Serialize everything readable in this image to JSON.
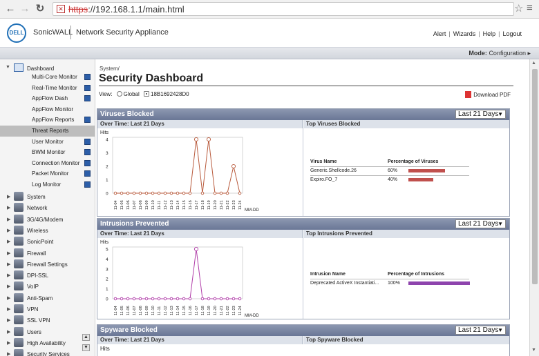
{
  "browser": {
    "back_icon": "arrow-left",
    "forward_icon": "arrow-right",
    "reload_icon": "reload",
    "url_scheme": "https",
    "url_rest": "://192.168.1.1/main.html"
  },
  "header": {
    "logo_text": "DELL",
    "brand": "SonicWALL",
    "product": "Network Security Appliance",
    "links": [
      "Alert",
      "Wizards",
      "Help",
      "Logout"
    ]
  },
  "mode_bar": {
    "label": "Mode:",
    "value": "Configuration ▸"
  },
  "sidebar": {
    "dashboard_label": "Dashboard",
    "sub_items": [
      {
        "label": "Multi-Core Monitor",
        "ext": true
      },
      {
        "label": "Real-Time Monitor",
        "ext": true
      },
      {
        "label": "AppFlow Dash",
        "ext": true
      },
      {
        "label": "AppFlow Monitor",
        "ext": false
      },
      {
        "label": "AppFlow Reports",
        "ext": true
      },
      {
        "label": "Threat Reports",
        "ext": false,
        "active": true
      },
      {
        "label": "User Monitor",
        "ext": true
      },
      {
        "label": "BWM Monitor",
        "ext": true
      },
      {
        "label": "Connection Monitor",
        "ext": true
      },
      {
        "label": "Packet Monitor",
        "ext": true
      },
      {
        "label": "Log Monitor",
        "ext": true
      }
    ],
    "top_items": [
      "System",
      "Network",
      "3G/4G/Modem",
      "Wireless",
      "SonicPoint",
      "Firewall",
      "Firewall Settings",
      "DPI-SSL",
      "VoIP",
      "Anti-Spam",
      "VPN",
      "SSL VPN",
      "Users",
      "High Availability",
      "Security Services"
    ]
  },
  "content": {
    "breadcrumb": "System/",
    "title": "Security Dashboard",
    "view_label": "View:",
    "view_global": "Global",
    "view_serial": "18B1692428D0",
    "download": "Download PDF"
  },
  "panels": [
    {
      "title": "Viruses Blocked",
      "period": "Last 21 Days",
      "left_head": "Over Time: Last 21 Days",
      "right_head": "Top Viruses Blocked",
      "col1": "Virus Name",
      "col2": "Percentage of Viruses",
      "rows": [
        {
          "name": "Generic.Shellcode.26",
          "pct": "60%",
          "value": 60
        },
        {
          "name": "Expiro.FO_7",
          "pct": "40%",
          "value": 40
        }
      ],
      "bar_color": "#c0504d"
    },
    {
      "title": "Intrusions Prevented",
      "period": "Last 21 Days",
      "left_head": "Over Time: Last 21 Days",
      "right_head": "Top Intrusions Prevented",
      "col1": "Intrusion Name",
      "col2": "Percentage of Intrusions",
      "rows": [
        {
          "name": "Deprecated ActiveX Instantiati...",
          "pct": "100%",
          "value": 100
        }
      ],
      "bar_color": "#8e44ad"
    },
    {
      "title": "Spyware Blocked",
      "period": "Last 21 Days",
      "left_head": "Over Time: Last 21 Days",
      "right_head": "Top Spyware Blocked",
      "col1": "",
      "col2": "",
      "rows": [],
      "bar_color": "#c0504d"
    }
  ],
  "chart_data": [
    {
      "type": "line",
      "ylabel": "Hits",
      "xlabel": "MM-DD",
      "ylim": [
        0,
        4
      ],
      "yticks": [
        0,
        1,
        2,
        3,
        4
      ],
      "categories": [
        "11-04",
        "11-05",
        "11-06",
        "11-07",
        "11-08",
        "11-09",
        "11-10",
        "11-11",
        "11-12",
        "11-13",
        "11-14",
        "11-15",
        "11-16",
        "11-17",
        "11-18",
        "11-19",
        "11-20",
        "11-21",
        "11-22",
        "11-23",
        "11-24"
      ],
      "values": [
        0,
        0,
        0,
        0,
        0,
        0,
        0,
        0,
        0,
        0,
        0,
        0,
        0,
        4,
        0,
        4,
        0,
        0,
        0,
        2,
        0
      ],
      "color": "#b85a3c"
    },
    {
      "type": "line",
      "ylabel": "Hits",
      "xlabel": "MM-DD",
      "ylim": [
        0,
        5
      ],
      "yticks": [
        0,
        1,
        2,
        3,
        4,
        5
      ],
      "categories": [
        "11-04",
        "11-05",
        "11-06",
        "11-07",
        "11-08",
        "11-09",
        "11-10",
        "11-11",
        "11-12",
        "11-13",
        "11-14",
        "11-15",
        "11-16",
        "11-17",
        "11-18",
        "11-19",
        "11-20",
        "11-21",
        "11-22",
        "11-23",
        "11-24"
      ],
      "values": [
        0,
        0,
        0,
        0,
        0,
        0,
        0,
        0,
        0,
        0,
        0,
        0,
        0,
        5,
        0,
        0,
        0,
        0,
        0,
        0,
        0
      ],
      "color": "#b03ca8"
    },
    {
      "type": "line",
      "ylabel": "Hits"
    }
  ]
}
